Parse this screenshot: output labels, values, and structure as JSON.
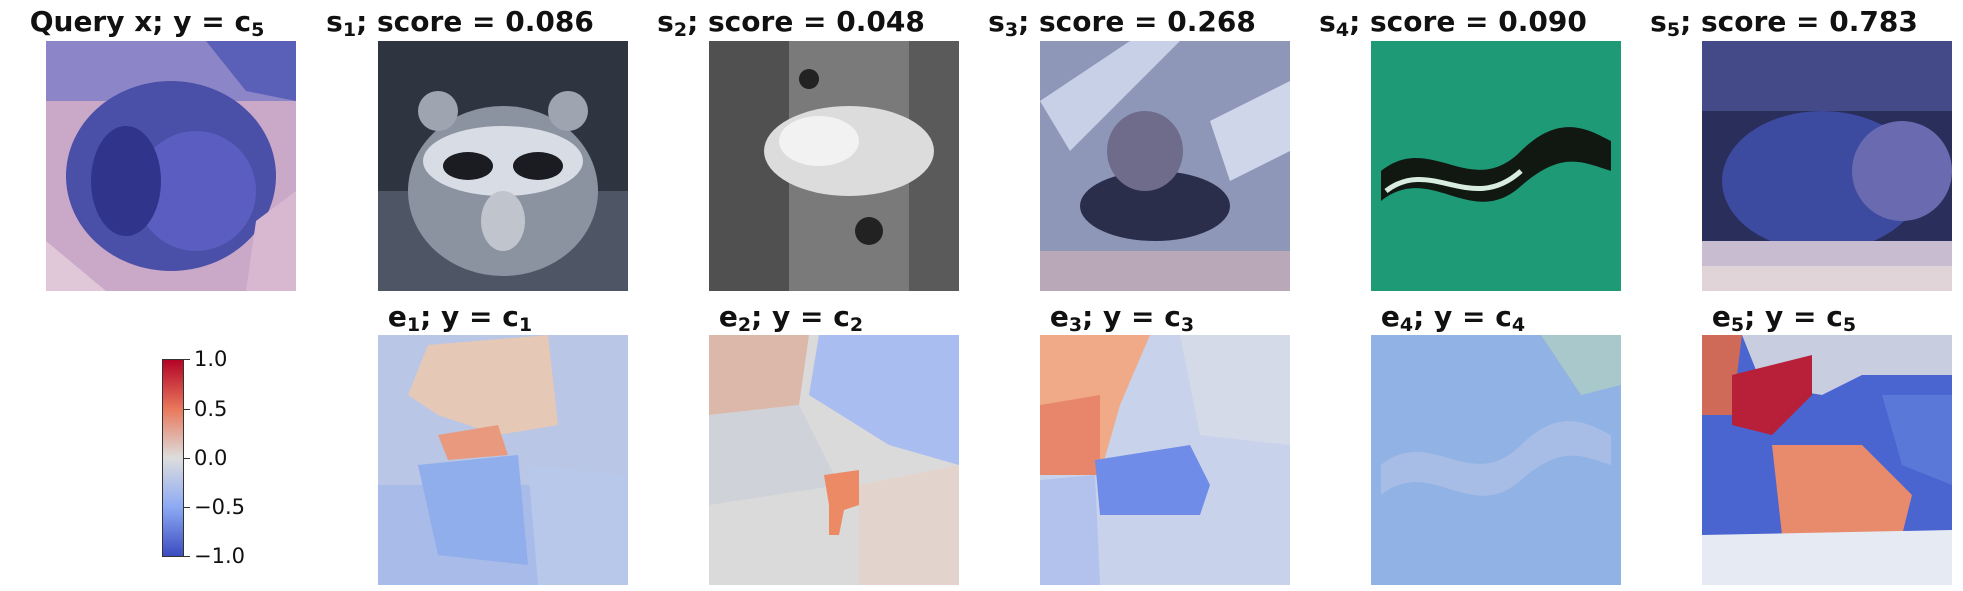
{
  "query": {
    "title_main": "Query x; y = c",
    "title_sub": "5"
  },
  "support": [
    {
      "title_main": "s",
      "title_sub": "1",
      "title_rest": "; score = 0.086",
      "score": 0.086
    },
    {
      "title_main": "s",
      "title_sub": "2",
      "title_rest": "; score = 0.048",
      "score": 0.048
    },
    {
      "title_main": "s",
      "title_sub": "3",
      "title_rest": "; score = 0.268",
      "score": 0.268
    },
    {
      "title_main": "s",
      "title_sub": "4",
      "title_rest": "; score = 0.090",
      "score": 0.09
    },
    {
      "title_main": "s",
      "title_sub": "5",
      "title_rest": "; score = 0.783",
      "score": 0.783
    }
  ],
  "explanations": [
    {
      "title_main": "e",
      "title_sub": "1",
      "title_mid": "; y = c",
      "title_sub2": "1"
    },
    {
      "title_main": "e",
      "title_sub": "2",
      "title_mid": "; y = c",
      "title_sub2": "2"
    },
    {
      "title_main": "e",
      "title_sub": "3",
      "title_mid": "; y = c",
      "title_sub2": "3"
    },
    {
      "title_main": "e",
      "title_sub": "4",
      "title_mid": "; y = c",
      "title_sub2": "4"
    },
    {
      "title_main": "e",
      "title_sub": "5",
      "title_mid": "; y = c",
      "title_sub2": "5"
    }
  ],
  "colorbar": {
    "ticks": [
      "1.0",
      "0.5",
      "0.0",
      "−0.5",
      "−1.0"
    ],
    "range": [
      -1.0,
      1.0
    ],
    "colors": {
      "high": "#b40426",
      "mid": "#dddddd",
      "low": "#3b4cc0"
    }
  }
}
